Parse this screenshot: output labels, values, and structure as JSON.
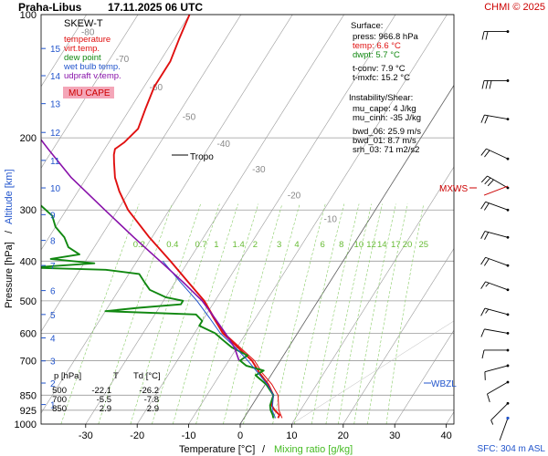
{
  "header": {
    "station": "Praha-Libus",
    "datetime": "17.11.2025 06 UTC",
    "copyright": "CHMI © 2025"
  },
  "legend": {
    "title": "SKEW-T",
    "items": [
      {
        "label": "temperature",
        "color": "#e01010"
      },
      {
        "label": "virt.temp.",
        "color": "#e01010"
      },
      {
        "label": "dew point",
        "color": "#118811"
      },
      {
        "label": "wet bulb temp.",
        "color": "#2255cc"
      },
      {
        "label": "udpraft v.temp.",
        "color": "#8811aa"
      }
    ],
    "badge": "MU CAPE",
    "badge_color": "#f4a6b8"
  },
  "surface": {
    "title": "Surface:",
    "lines": [
      {
        "text": "press: 966.8 hPa",
        "color": "#000000"
      },
      {
        "text": "temp: 6.6 °C",
        "color": "#e01010"
      },
      {
        "text": "dwpt: 5.7 °C",
        "color": "#118811"
      },
      {
        "text": "t-conv: 7.9 °C",
        "color": "#000000"
      },
      {
        "text": "t-mxfc: 15.2 °C",
        "color": "#000000"
      }
    ]
  },
  "instability": {
    "title": "Instability/Shear:",
    "lines": [
      "mu_cape: 4 J/kg",
      "mu_cinh: -35 J/kg",
      "bwd_06: 25.9 m/s",
      "bwd_01: 8.7 m/s",
      "srh_03: 71 m2/s2"
    ]
  },
  "level_table": {
    "headers": [
      "p [hPa]",
      "T",
      "Td [°C]"
    ],
    "rows": [
      [
        "500",
        "-22.1",
        "-26.2"
      ],
      [
        "700",
        "-5.5",
        "-7.8"
      ],
      [
        "850",
        "2.9",
        "2.9"
      ]
    ]
  },
  "markers": {
    "tropo": "Tropo",
    "mxws": "MXWS",
    "wbzl": "WBZL"
  },
  "footer": {
    "sfc": "SFC: 304 m ASL"
  },
  "chart_data": {
    "type": "line",
    "xlabel": "Temperature [°C]",
    "xlabel_sep": "/",
    "xlabel2": "Mixing ratio [g/kg]",
    "ylabel": "Pressure [hPa]",
    "ylabel_sep": "/",
    "ylabel2": "Altitude [km]",
    "xlim": [
      -35,
      42
    ],
    "ylim": [
      1000,
      100
    ],
    "y_scale": "log",
    "x_ticks": [
      -30,
      -20,
      -10,
      0,
      10,
      20,
      30,
      40
    ],
    "p_ticks": [
      100,
      200,
      300,
      400,
      500,
      600,
      700,
      850,
      925,
      1000
    ],
    "alt_ticks": [
      {
        "km": 1,
        "p": 896
      },
      {
        "km": 2,
        "p": 794
      },
      {
        "km": 3,
        "p": 701
      },
      {
        "km": 4,
        "p": 616
      },
      {
        "km": 5,
        "p": 540
      },
      {
        "km": 6,
        "p": 472
      },
      {
        "km": 7,
        "p": 410
      },
      {
        "km": 8,
        "p": 356
      },
      {
        "km": 9,
        "p": 308
      },
      {
        "km": 10,
        "p": 265
      },
      {
        "km": 11,
        "p": 227
      },
      {
        "km": 12,
        "p": 194
      },
      {
        "km": 13,
        "p": 165
      },
      {
        "km": 14,
        "p": 141
      },
      {
        "km": 15,
        "p": 121
      }
    ],
    "isotherm_labels": [
      -80,
      -70,
      -60,
      -50,
      -40,
      -30,
      -20,
      -10
    ],
    "mixing_ratio_labels": [
      "0.2",
      "0.4",
      "0.7",
      "1",
      "1.4",
      "2",
      "3",
      "4",
      "6",
      "8",
      "10",
      "12",
      "14",
      "17",
      "20",
      "25"
    ],
    "mixing_ratio_values": [
      0.2,
      0.4,
      0.7,
      1,
      1.4,
      2,
      3,
      4,
      6,
      8,
      10,
      12,
      14,
      17,
      20,
      25
    ],
    "series": [
      {
        "name": "temperature",
        "color": "#e01010",
        "points": [
          [
            966.8,
            6.6
          ],
          [
            950,
            6.5
          ],
          [
            925,
            5.0
          ],
          [
            900,
            3.8
          ],
          [
            850,
            2.9
          ],
          [
            800,
            0.6
          ],
          [
            750,
            -2.5
          ],
          [
            700,
            -5.5
          ],
          [
            650,
            -9.8
          ],
          [
            600,
            -14.5
          ],
          [
            550,
            -18.2
          ],
          [
            500,
            -22.1
          ],
          [
            450,
            -27.5
          ],
          [
            400,
            -33.5
          ],
          [
            350,
            -40.5
          ],
          [
            300,
            -48
          ],
          [
            270,
            -52
          ],
          [
            250,
            -54.5
          ],
          [
            230,
            -56.5
          ],
          [
            220,
            -57.5
          ],
          [
            213,
            -58
          ],
          [
            205,
            -57
          ],
          [
            190,
            -56
          ],
          [
            170,
            -57
          ],
          [
            150,
            -58
          ],
          [
            130,
            -58
          ],
          [
            115,
            -59
          ],
          [
            100,
            -60
          ]
        ]
      },
      {
        "name": "virtual temperature",
        "color": "#e01010",
        "points": [
          [
            966.8,
            7.4
          ],
          [
            925,
            5.8
          ],
          [
            850,
            3.8
          ],
          [
            800,
            1.3
          ],
          [
            750,
            -2.0
          ],
          [
            700,
            -5.0
          ],
          [
            650,
            -9.4
          ],
          [
            600,
            -14.2
          ],
          [
            550,
            -18.0
          ],
          [
            500,
            -22.0
          ],
          [
            450,
            -27.5
          ],
          [
            400,
            -33.5
          ]
        ]
      },
      {
        "name": "dew point",
        "color": "#118811",
        "points": [
          [
            966.8,
            5.7
          ],
          [
            950,
            5.2
          ],
          [
            925,
            4.2
          ],
          [
            900,
            3.5
          ],
          [
            850,
            2.9
          ],
          [
            800,
            0.2
          ],
          [
            760,
            -3
          ],
          [
            740,
            -2
          ],
          [
            720,
            -6
          ],
          [
            700,
            -7.8
          ],
          [
            680,
            -7
          ],
          [
            650,
            -11
          ],
          [
            620,
            -14
          ],
          [
            600,
            -16
          ],
          [
            575,
            -20
          ],
          [
            560,
            -20
          ],
          [
            540,
            -22
          ],
          [
            530,
            -40
          ],
          [
            520,
            -34
          ],
          [
            510,
            -26.2
          ],
          [
            500,
            -26.2
          ],
          [
            490,
            -30
          ],
          [
            470,
            -34
          ],
          [
            450,
            -36
          ],
          [
            430,
            -38
          ],
          [
            420,
            -45
          ],
          [
            415,
            -60
          ],
          [
            405,
            -48
          ],
          [
            395,
            -57
          ],
          [
            385,
            -52
          ],
          [
            370,
            -55
          ],
          [
            350,
            -57
          ],
          [
            330,
            -60
          ],
          [
            310,
            -62
          ],
          [
            290,
            -66
          ],
          [
            270,
            -68
          ],
          [
            250,
            -72
          ],
          [
            235,
            -72
          ],
          [
            225,
            -72
          ],
          [
            215,
            -78
          ],
          [
            210,
            -76
          ],
          [
            200,
            -76
          ],
          [
            180,
            -78
          ],
          [
            160,
            -82
          ],
          [
            140,
            -84
          ],
          [
            120,
            -86
          ],
          [
            105,
            -88
          ]
        ]
      },
      {
        "name": "wet bulb temp.",
        "color": "#2255cc",
        "points": [
          [
            966.8,
            6.1
          ],
          [
            925,
            4.5
          ],
          [
            850,
            2.9
          ],
          [
            800,
            0.4
          ],
          [
            750,
            -2.8
          ],
          [
            700,
            -6.3
          ],
          [
            650,
            -10.3
          ],
          [
            600,
            -15.0
          ],
          [
            550,
            -19.0
          ],
          [
            500,
            -23.5
          ],
          [
            450,
            -29
          ],
          [
            400,
            -35
          ]
        ]
      },
      {
        "name": "udpraft v.temp.",
        "color": "#8811aa",
        "points": [
          [
            700,
            -8.0
          ],
          [
            650,
            -10.5
          ],
          [
            600,
            -14.0
          ],
          [
            550,
            -18.0
          ],
          [
            500,
            -22.5
          ],
          [
            450,
            -28.5
          ],
          [
            400,
            -35.5
          ],
          [
            350,
            -43.5
          ],
          [
            300,
            -52.5
          ],
          [
            250,
            -63
          ],
          [
            215,
            -70.5
          ],
          [
            200,
            -74
          ],
          [
            150,
            -86
          ],
          [
            130,
            -91
          ],
          [
            118,
            -94
          ]
        ]
      }
    ],
    "wind_levels": [
      {
        "p": 110,
        "dir": 270,
        "spd": 23
      },
      {
        "p": 145,
        "dir": 270,
        "spd": 33
      },
      {
        "p": 180,
        "dir": 280,
        "spd": 23
      },
      {
        "p": 225,
        "dir": 295,
        "spd": 23
      },
      {
        "p": 265,
        "dir": 300,
        "spd": 33
      },
      {
        "p": 300,
        "dir": 290,
        "spd": 23
      },
      {
        "p": 350,
        "dir": 285,
        "spd": 23
      },
      {
        "p": 410,
        "dir": 290,
        "spd": 20
      },
      {
        "p": 470,
        "dir": 290,
        "spd": 18
      },
      {
        "p": 540,
        "dir": 285,
        "spd": 15
      },
      {
        "p": 600,
        "dir": 280,
        "spd": 13
      },
      {
        "p": 660,
        "dir": 270,
        "spd": 13
      },
      {
        "p": 720,
        "dir": 255,
        "spd": 13
      },
      {
        "p": 790,
        "dir": 240,
        "spd": 13
      },
      {
        "p": 890,
        "dir": 225,
        "spd": 8
      },
      {
        "p": 966.8,
        "dir": 200,
        "spd": 3
      }
    ]
  }
}
